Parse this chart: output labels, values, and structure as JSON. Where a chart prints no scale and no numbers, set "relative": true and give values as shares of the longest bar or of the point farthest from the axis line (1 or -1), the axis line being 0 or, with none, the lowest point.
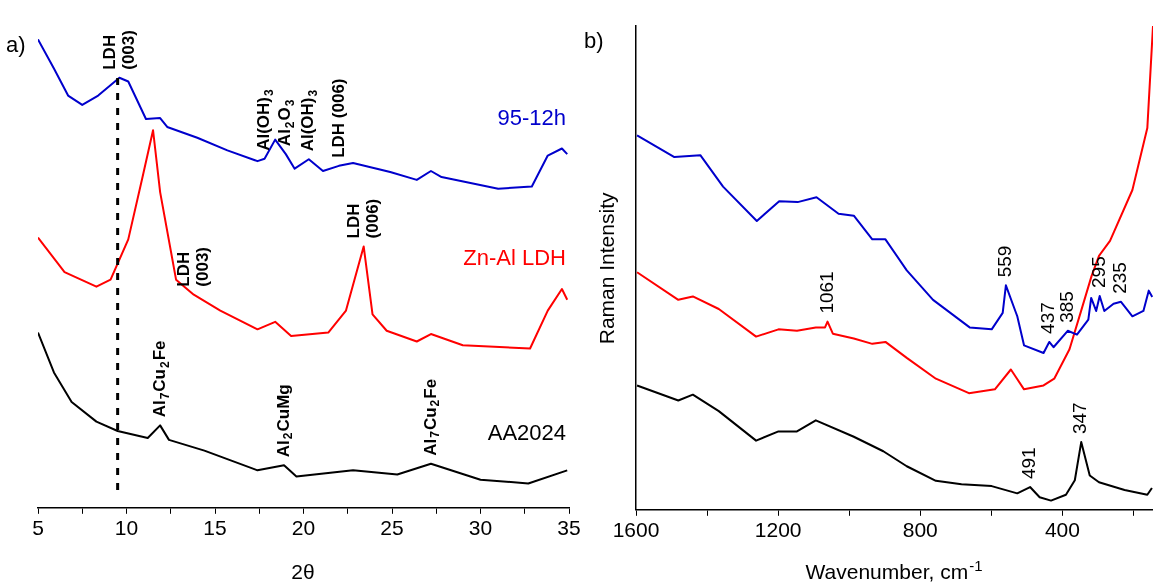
{
  "chart_data": [
    {
      "type": "line",
      "title": "a)",
      "xlabel": "2θ",
      "relative": true,
      "tick_labels": "x",
      "grid": false,
      "legend": false,
      "marker": "none",
      "line_style": "solid",
      "xlim": [
        5,
        35
      ],
      "xticks": [
        5,
        {
          "value": 7.5,
          "label": null
        },
        10,
        {
          "value": 12.5,
          "label": null
        },
        15,
        {
          "value": 17.5,
          "label": null
        },
        20,
        {
          "value": 22.5,
          "label": null
        },
        25,
        {
          "value": 27.5,
          "label": null
        },
        30,
        {
          "value": 32.5,
          "label": null
        },
        35
      ],
      "series": [
        {
          "name": "95-12h",
          "color": "#0000cc",
          "x": [
            5.0,
            5.9,
            6.7,
            7.5,
            8.4,
            9.6,
            10.1,
            11.1,
            11.9,
            12.3,
            14.0,
            15.7,
            17.4,
            17.8,
            18.4,
            19.0,
            19.5,
            20.3,
            21.1,
            22.0,
            22.8,
            24.9,
            26.4,
            27.2,
            27.8,
            31.0,
            32.9,
            33.8,
            34.6,
            34.9
          ],
          "values": [
            1.0,
            0.938,
            0.88,
            0.86,
            0.88,
            0.918,
            0.91,
            0.83,
            0.832,
            0.813,
            0.79,
            0.763,
            0.74,
            0.745,
            0.786,
            0.755,
            0.724,
            0.744,
            0.719,
            0.73,
            0.736,
            0.717,
            0.7,
            0.719,
            0.706,
            0.681,
            0.686,
            0.752,
            0.767,
            0.755
          ]
        },
        {
          "name": "Zn-Al LDH",
          "color": "#ff0000",
          "x": [
            5.0,
            6.5,
            8.3,
            9.1,
            10.1,
            10.9,
            11.5,
            11.9,
            12.8,
            13.8,
            15.3,
            17.4,
            18.4,
            19.3,
            21.4,
            22.4,
            23.4,
            23.9,
            24.7,
            26.4,
            27.2,
            29.0,
            32.8,
            33.8,
            34.6,
            34.9
          ],
          "values": [
            0.577,
            0.503,
            0.472,
            0.487,
            0.573,
            0.705,
            0.806,
            0.674,
            0.487,
            0.455,
            0.421,
            0.381,
            0.397,
            0.367,
            0.374,
            0.421,
            0.558,
            0.413,
            0.378,
            0.355,
            0.371,
            0.347,
            0.34,
            0.421,
            0.467,
            0.444
          ]
        },
        {
          "name": "AA2024",
          "color": "#000000",
          "x": [
            5.0,
            5.9,
            6.9,
            8.3,
            9.5,
            11.2,
            11.9,
            12.4,
            14.4,
            17.4,
            18.9,
            19.6,
            22.8,
            25.3,
            27.2,
            30.0,
            32.7,
            34.9
          ],
          "values": [
            0.374,
            0.289,
            0.226,
            0.184,
            0.164,
            0.149,
            0.176,
            0.145,
            0.122,
            0.08,
            0.091,
            0.067,
            0.08,
            0.071,
            0.094,
            0.06,
            0.052,
            0.08
          ]
        }
      ],
      "ref_lines": [
        {
          "axis": "x",
          "value": 9.5,
          "color": "#000000",
          "line_style": "dashed"
        }
      ],
      "annotations": [
        {
          "text": "LDH\n(003)",
          "x": 9.6,
          "y": 0.918
        },
        {
          "text": "Al(OH)$_{3}$",
          "x": 17.8,
          "y": 0.745
        },
        {
          "text": "Al$_{2}$O$_{3}$",
          "x": 19.0,
          "y": 0.755
        },
        {
          "text": "Al(OH)$_{3}$",
          "x": 20.3,
          "y": 0.744
        },
        {
          "text": "LDH (006)",
          "x": 22.0,
          "y": 0.73
        },
        {
          "text": "LDH\n(003)",
          "x": 13.8,
          "y": 0.455
        },
        {
          "text": "LDH\n(006)",
          "x": 23.4,
          "y": 0.558
        },
        {
          "text": "Al$_{7}$Cu$_{2}$Fe",
          "x": 11.9,
          "y": 0.176
        },
        {
          "text": "Al$_{2}$CuMg",
          "x": 18.9,
          "y": 0.091
        },
        {
          "text": "Al$_{7}$Cu$_{2}$Fe",
          "x": 27.2,
          "y": 0.094
        }
      ]
    },
    {
      "type": "line",
      "title": "b)",
      "xlabel": "Wavenumber, cm$^{-1}$",
      "ylabel": "Raman Intensity",
      "relative": true,
      "tick_labels": "x",
      "grid": false,
      "legend": false,
      "marker": "none",
      "line_style": "solid",
      "xlim": [
        1600,
        145
      ],
      "xticks": [
        1600,
        {
          "value": 1400,
          "label": null
        },
        1200,
        {
          "value": 1000,
          "label": null
        },
        800,
        {
          "value": 600,
          "label": null
        },
        400,
        {
          "value": 200,
          "label": null
        }
      ],
      "series": [
        {
          "color": "#0000cc",
          "x": [
            1597,
            1492,
            1419,
            1355,
            1260,
            1197,
            1145,
            1092,
            1030,
            987,
            935,
            898,
            838,
            764,
            661,
            599,
            568,
            559,
            527,
            508,
            453,
            437,
            425,
            385,
            359,
            327,
            319,
            305,
            295,
            282,
            256,
            235,
            203,
            172,
            157,
            147
          ],
          "values": [
            0.774,
            0.729,
            0.733,
            0.668,
            0.597,
            0.638,
            0.636,
            0.646,
            0.612,
            0.608,
            0.559,
            0.559,
            0.495,
            0.434,
            0.377,
            0.373,
            0.407,
            0.464,
            0.4,
            0.34,
            0.324,
            0.347,
            0.336,
            0.37,
            0.362,
            0.393,
            0.438,
            0.411,
            0.442,
            0.411,
            0.426,
            0.43,
            0.4,
            0.411,
            0.453,
            0.44
          ]
        },
        {
          "color": "#ff0000",
          "x": [
            1597,
            1481,
            1440,
            1367,
            1262,
            1199,
            1147,
            1094,
            1068,
            1061,
            1046,
            987,
            935,
            898,
            838,
            756,
            663,
            590,
            545,
            508,
            453,
            423,
            380,
            349,
            318,
            297,
            266,
            203,
            161,
            145
          ],
          "values": [
            0.491,
            0.434,
            0.441,
            0.415,
            0.358,
            0.373,
            0.37,
            0.377,
            0.377,
            0.389,
            0.364,
            0.354,
            0.343,
            0.347,
            0.314,
            0.271,
            0.241,
            0.249,
            0.29,
            0.249,
            0.257,
            0.271,
            0.332,
            0.407,
            0.483,
            0.525,
            0.556,
            0.661,
            0.789,
            1.0
          ]
        },
        {
          "color": "#000000",
          "x": [
            1597,
            1481,
            1440,
            1367,
            1262,
            1199,
            1147,
            1094,
            987,
            904,
            838,
            756,
            684,
            599,
            527,
            491,
            464,
            432,
            390,
            365,
            347,
            323,
            297,
            225,
            161,
            148
          ],
          "values": [
            0.257,
            0.226,
            0.238,
            0.204,
            0.143,
            0.162,
            0.162,
            0.185,
            0.151,
            0.121,
            0.09,
            0.06,
            0.053,
            0.049,
            0.034,
            0.047,
            0.026,
            0.019,
            0.031,
            0.061,
            0.14,
            0.071,
            0.057,
            0.041,
            0.031,
            0.045
          ]
        }
      ],
      "annotations": [
        {
          "text": "1061",
          "x": 1061,
          "y": 0.389
        },
        {
          "text": "559",
          "x": 559,
          "y": 0.464
        },
        {
          "text": "437",
          "x": 437,
          "y": 0.347
        },
        {
          "text": "385",
          "x": 385,
          "y": 0.37
        },
        {
          "text": "295",
          "x": 295,
          "y": 0.442
        },
        {
          "text": "235",
          "x": 235,
          "y": 0.43
        },
        {
          "text": "491",
          "x": 491,
          "y": 0.047
        },
        {
          "text": "347",
          "x": 347,
          "y": 0.14
        }
      ]
    }
  ]
}
